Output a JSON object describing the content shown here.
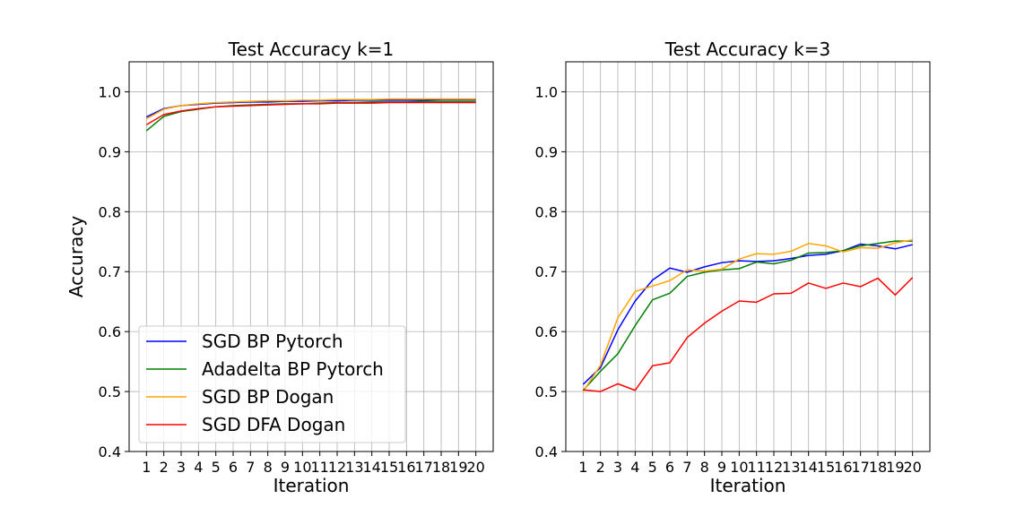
{
  "colors": {
    "SGD BP Pytorch": "#0000ff",
    "Adadelta BP Pytorch": "#008000",
    "SGD BP Dogan": "#ffa500",
    "SGD DFA Dogan": "#ff0000"
  },
  "chart_data": [
    {
      "type": "line",
      "title": "Test Accuracy k=1",
      "xlabel": "Iteration",
      "ylabel": "Accuracy",
      "x": [
        1,
        2,
        3,
        4,
        5,
        6,
        7,
        8,
        9,
        10,
        11,
        12,
        13,
        14,
        15,
        16,
        17,
        18,
        19,
        20
      ],
      "xticks": [
        "1",
        "2",
        "3",
        "4",
        "5",
        "6",
        "7",
        "8",
        "9",
        "10",
        "11",
        "12",
        "13",
        "14",
        "15",
        "16",
        "17",
        "18",
        "19",
        "20"
      ],
      "xlim": [
        0.0,
        21.0
      ],
      "ylim": [
        0.4,
        1.05
      ],
      "yticks": [
        "0.4",
        "0.5",
        "0.6",
        "0.7",
        "0.8",
        "0.9",
        "1.0"
      ],
      "grid": true,
      "legend": "lower-left",
      "series": [
        {
          "name": "SGD BP Pytorch",
          "color": "#0000ff",
          "values": [
            0.958,
            0.972,
            0.977,
            0.979,
            0.981,
            0.982,
            0.983,
            0.983,
            0.984,
            0.984,
            0.985,
            0.985,
            0.986,
            0.986,
            0.986,
            0.986,
            0.986,
            0.987,
            0.987,
            0.987
          ]
        },
        {
          "name": "Adadelta BP Pytorch",
          "color": "#008000",
          "values": [
            0.935,
            0.959,
            0.967,
            0.971,
            0.975,
            0.977,
            0.978,
            0.979,
            0.98,
            0.98,
            0.981,
            0.982,
            0.982,
            0.983,
            0.983,
            0.983,
            0.984,
            0.984,
            0.984,
            0.984
          ]
        },
        {
          "name": "SGD BP Dogan",
          "color": "#ffa500",
          "values": [
            0.955,
            0.971,
            0.977,
            0.98,
            0.982,
            0.983,
            0.984,
            0.985,
            0.985,
            0.986,
            0.986,
            0.987,
            0.987,
            0.987,
            0.988,
            0.988,
            0.988,
            0.988,
            0.988,
            0.988
          ]
        },
        {
          "name": "SGD DFA Dogan",
          "color": "#ff0000",
          "values": [
            0.945,
            0.962,
            0.968,
            0.972,
            0.975,
            0.976,
            0.977,
            0.978,
            0.979,
            0.98,
            0.98,
            0.981,
            0.981,
            0.981,
            0.982,
            0.982,
            0.982,
            0.982,
            0.982,
            0.982
          ]
        }
      ]
    },
    {
      "type": "line",
      "title": "Test Accuracy k=3",
      "xlabel": "Iteration",
      "ylabel": "",
      "x": [
        1,
        2,
        3,
        4,
        5,
        6,
        7,
        8,
        9,
        10,
        11,
        12,
        13,
        14,
        15,
        16,
        17,
        18,
        19,
        20
      ],
      "xticks": [
        "1",
        "2",
        "3",
        "4",
        "5",
        "6",
        "7",
        "8",
        "9",
        "10",
        "11",
        "12",
        "13",
        "14",
        "15",
        "16",
        "17",
        "18",
        "19",
        "20"
      ],
      "xlim": [
        0.0,
        21.0
      ],
      "ylim": [
        0.4,
        1.05
      ],
      "yticks": [
        "0.4",
        "0.5",
        "0.6",
        "0.7",
        "0.8",
        "0.9",
        "1.0"
      ],
      "grid": true,
      "legend": "none",
      "series": [
        {
          "name": "SGD BP Pytorch",
          "color": "#0000ff",
          "values": [
            0.512,
            0.54,
            0.603,
            0.651,
            0.686,
            0.706,
            0.699,
            0.708,
            0.715,
            0.718,
            0.717,
            0.718,
            0.722,
            0.727,
            0.729,
            0.735,
            0.746,
            0.743,
            0.738,
            0.745
          ]
        },
        {
          "name": "Adadelta BP Pytorch",
          "color": "#008000",
          "values": [
            0.502,
            0.534,
            0.563,
            0.61,
            0.653,
            0.664,
            0.692,
            0.699,
            0.703,
            0.705,
            0.716,
            0.713,
            0.719,
            0.731,
            0.732,
            0.735,
            0.743,
            0.747,
            0.751,
            0.751
          ]
        },
        {
          "name": "SGD BP Dogan",
          "color": "#ffa500",
          "values": [
            0.5,
            0.544,
            0.623,
            0.667,
            0.676,
            0.685,
            0.703,
            0.701,
            0.704,
            0.721,
            0.73,
            0.729,
            0.734,
            0.747,
            0.743,
            0.733,
            0.74,
            0.739,
            0.748,
            0.753
          ]
        },
        {
          "name": "SGD DFA Dogan",
          "color": "#ff0000",
          "values": [
            0.503,
            0.5,
            0.513,
            0.502,
            0.543,
            0.548,
            0.59,
            0.614,
            0.634,
            0.651,
            0.649,
            0.663,
            0.664,
            0.681,
            0.672,
            0.681,
            0.675,
            0.689,
            0.661,
            0.69
          ]
        }
      ]
    }
  ]
}
